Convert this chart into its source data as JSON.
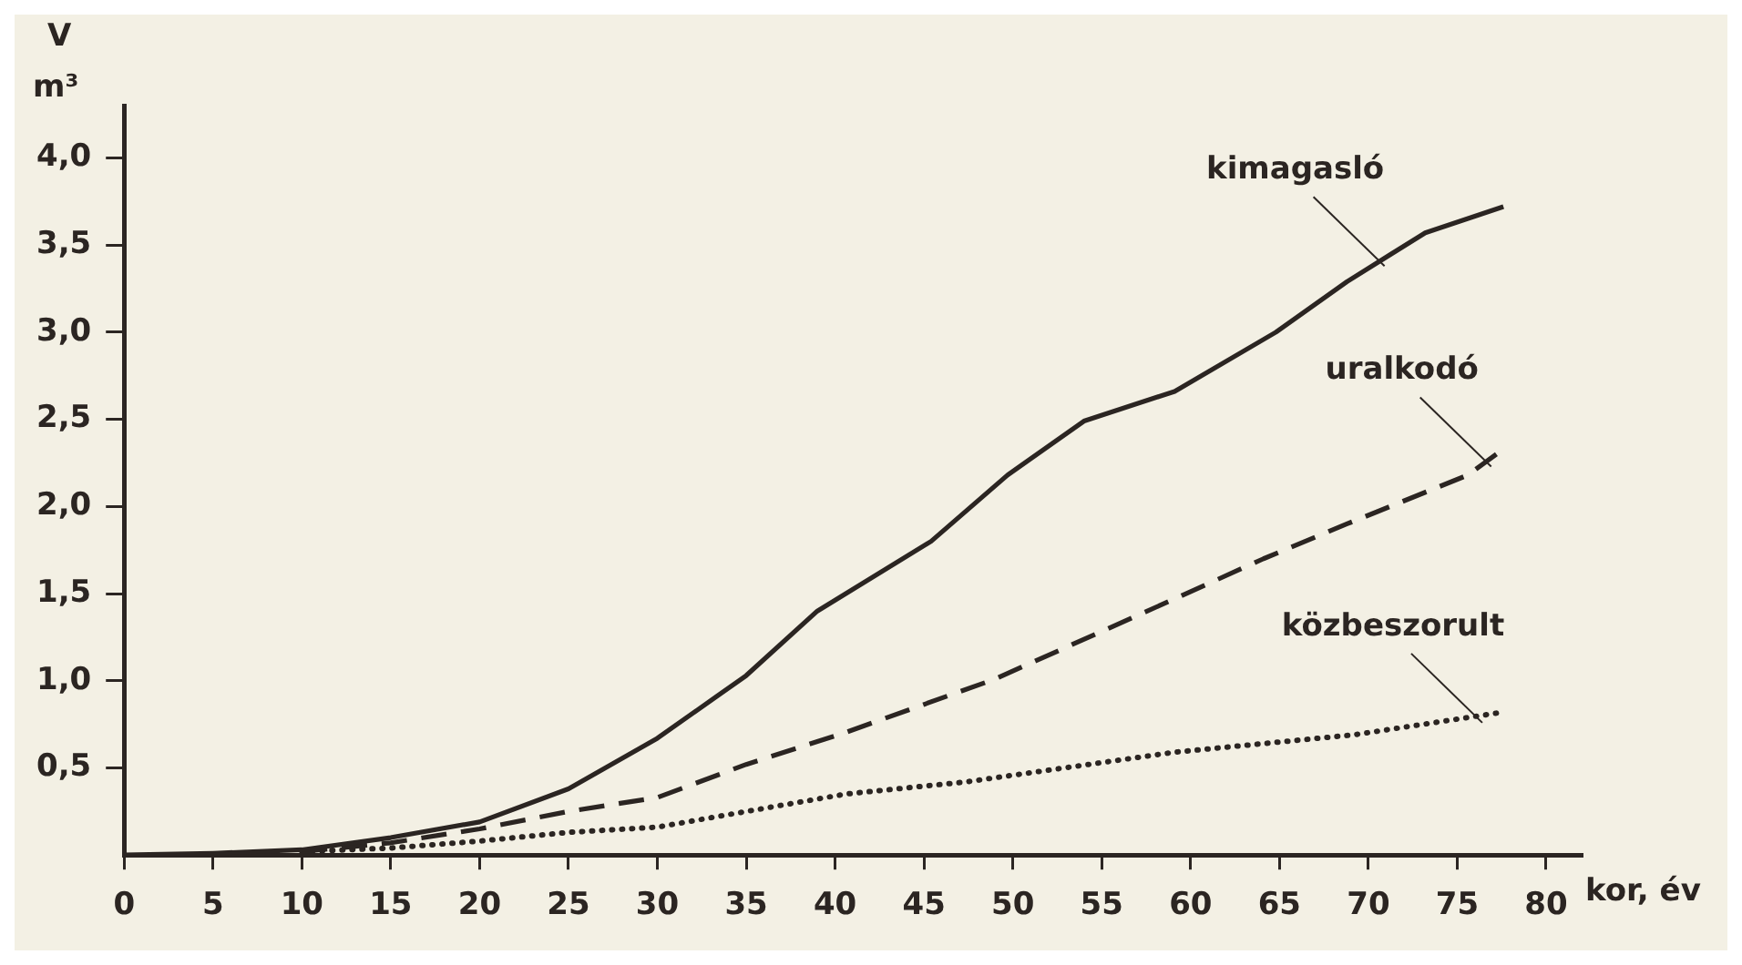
{
  "chart_data": {
    "type": "line",
    "ylabel": "V m³",
    "xlabel": "kor, év",
    "xlim": [
      0,
      82
    ],
    "ylim": [
      0,
      4.3
    ],
    "xticks": [
      0,
      5,
      10,
      15,
      20,
      25,
      30,
      35,
      40,
      45,
      50,
      55,
      60,
      65,
      70,
      75,
      80
    ],
    "yticks": [
      {
        "value": 0.5,
        "label": "0,5"
      },
      {
        "value": 1,
        "label": "1,0"
      },
      {
        "value": 1.5,
        "label": "1,5"
      },
      {
        "value": 2,
        "label": "2,0"
      },
      {
        "value": 2.5,
        "label": "2,5"
      },
      {
        "value": 3,
        "label": "3,0"
      },
      {
        "value": 3.5,
        "label": "3,5"
      },
      {
        "value": 4,
        "label": "4,0"
      }
    ],
    "grid": false,
    "legend": false,
    "marker": "none",
    "series": [
      {
        "color": "#2b2522",
        "line_style": "solid",
        "x": [
          0,
          5,
          10,
          15,
          20,
          25,
          30,
          35,
          39,
          45.4,
          49.7,
          54,
          59.1,
          64.8,
          68.8,
          73.2,
          77.6
        ],
        "values": [
          0,
          0.01,
          0.03,
          0.1,
          0.19,
          0.38,
          0.67,
          1.03,
          1.4,
          1.8,
          2.18,
          2.49,
          2.66,
          3.0,
          3.29,
          3.57,
          3.72
        ]
      },
      {
        "color": "#2b2522",
        "line_style": "dashed",
        "x": [
          10,
          15,
          20,
          25,
          30,
          35,
          40.5,
          49,
          59.1,
          64.1,
          68.8,
          75.6,
          77.6
        ],
        "values": [
          0.02,
          0.07,
          0.15,
          0.25,
          0.33,
          0.52,
          0.7,
          1.01,
          1.47,
          1.7,
          1.9,
          2.18,
          2.33
        ]
      },
      {
        "color": "#2b2522",
        "line_style": "dotted",
        "x": [
          10,
          15,
          20,
          25,
          30,
          35,
          40.6,
          47.4,
          59.1,
          69.2,
          77.6
        ],
        "values": [
          0.02,
          0.04,
          0.08,
          0.13,
          0.16,
          0.25,
          0.35,
          0.42,
          0.59,
          0.69,
          0.82
        ]
      }
    ],
    "annotations": [
      {
        "text": "kimagasló",
        "x": 70.5,
        "y": 3.4
      },
      {
        "text": "uralkodó",
        "x": 76.5,
        "y": 2.25
      },
      {
        "text": "közbeszorult",
        "x": 76,
        "y": 0.78
      }
    ]
  }
}
